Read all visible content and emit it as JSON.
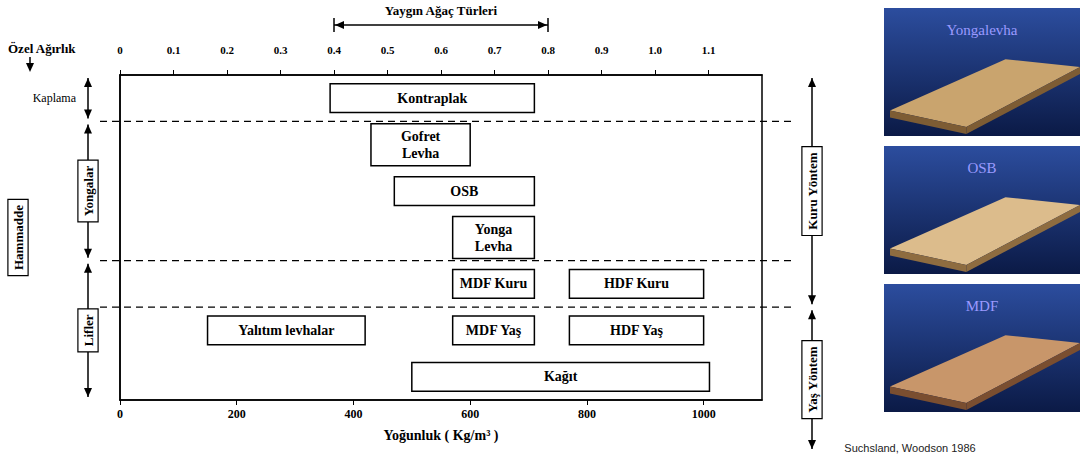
{
  "chart_data": {
    "type": "range_bar",
    "orientation": "horizontal",
    "categories": [
      null,
      null,
      null,
      null,
      null,
      null,
      null
    ],
    "bars": [
      {
        "label": "Kontraplak",
        "row": 0,
        "start": 360,
        "end": 710
      },
      {
        "label": "Gofret Levha",
        "row": 1,
        "start": 430,
        "end": 600
      },
      {
        "label": "OSB",
        "row": 2,
        "start": 470,
        "end": 710
      },
      {
        "label": "Yonga Levha",
        "row": 3,
        "start": 570,
        "end": 710
      },
      {
        "label": "MDF Kuru",
        "row": 4,
        "start": 570,
        "end": 710
      },
      {
        "label": "HDF Kuru",
        "row": 4,
        "start": 770,
        "end": 1000
      },
      {
        "label": "Yalıtım levhalar",
        "row": 5,
        "start": 150,
        "end": 420
      },
      {
        "label": "MDF Yaş",
        "row": 5,
        "start": 570,
        "end": 710
      },
      {
        "label": "HDF Yaş",
        "row": 5,
        "start": 770,
        "end": 1000
      },
      {
        "label": "Kağıt",
        "row": 6,
        "start": 500,
        "end": 1010
      }
    ],
    "xlabel": "Yoğunluk ( Kg/m³ )",
    "xlim": [
      0,
      1100
    ],
    "xticks": [
      0,
      200,
      400,
      600,
      800,
      1000
    ],
    "x2label": "Özel Ağırlık",
    "x2lim": [
      0,
      1.2
    ],
    "x2ticks": [
      0,
      0.1,
      0.2,
      0.3,
      0.4,
      0.5,
      0.6,
      0.7,
      0.8,
      0.9,
      {
        "value": 1,
        "label": "1.0"
      },
      1.1
    ],
    "common_range": {
      "label": "Yaygın Ağaç Türleri",
      "start": 0.4,
      "end": 0.8
    },
    "left_title": "Hammadde",
    "left_groups": [
      {
        "label": "Kaplama",
        "rows": [
          0,
          0
        ]
      },
      {
        "label": "Yongalar",
        "rows": [
          1,
          3
        ]
      },
      {
        "label": "Lifler",
        "rows": [
          4,
          6
        ]
      }
    ],
    "right_groups": [
      {
        "label": "Kuru Yöntem",
        "rows": [
          0,
          4
        ]
      },
      {
        "label": "Yaş Yöntem",
        "rows": [
          5,
          6
        ]
      }
    ],
    "photos": [
      "Yongalevha",
      "OSB",
      "MDF"
    ],
    "source": "Suchsland, Woodson 1986",
    "tick_labels": "x",
    "grid": false
  }
}
